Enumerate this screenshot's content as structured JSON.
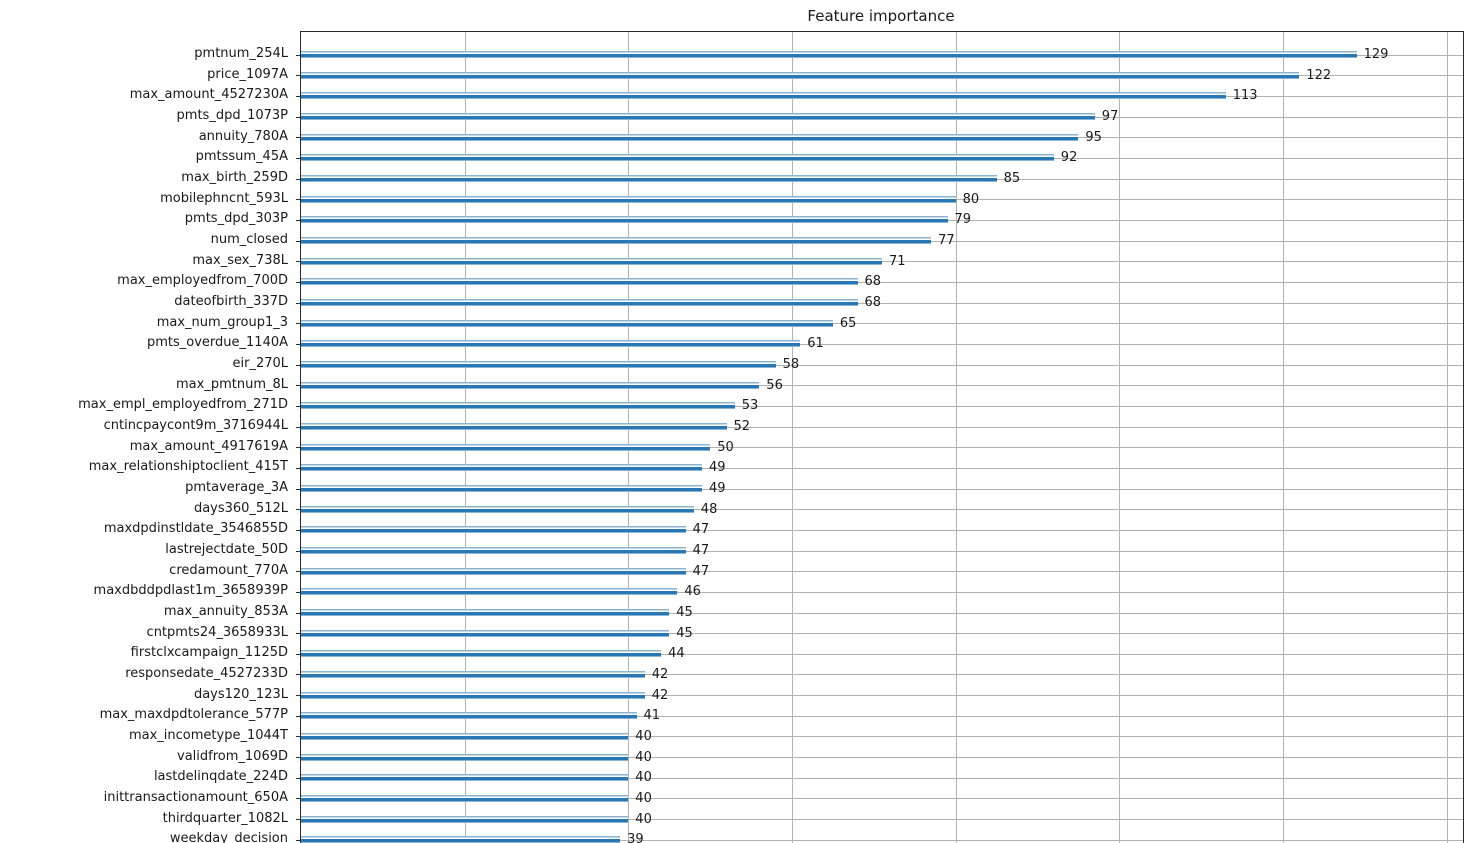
{
  "title": "Feature importance",
  "chart_data": {
    "type": "bar",
    "orientation": "horizontal",
    "title": "Feature importance",
    "xlabel": "",
    "ylabel": "",
    "xlim": [
      0,
      142
    ],
    "x_gridlines": [
      20,
      40,
      60,
      80,
      100,
      120,
      140
    ],
    "grid": true,
    "bar_color": "#2878b5",
    "gridline_color": "#b2b2b2",
    "value_labels_shown": true,
    "categories": [
      "pmtnum_254L",
      "price_1097A",
      "max_amount_4527230A",
      "pmts_dpd_1073P",
      "annuity_780A",
      "pmtssum_45A",
      "max_birth_259D",
      "mobilephncnt_593L",
      "pmts_dpd_303P",
      "num_closed",
      "max_sex_738L",
      "max_employedfrom_700D",
      "dateofbirth_337D",
      "max_num_group1_3",
      "pmts_overdue_1140A",
      "eir_270L",
      "max_pmtnum_8L",
      "max_empl_employedfrom_271D",
      "cntincpaycont9m_3716944L",
      "max_amount_4917619A",
      "max_relationshiptoclient_415T",
      "pmtaverage_3A",
      "days360_512L",
      "maxdpdinstldate_3546855D",
      "lastrejectdate_50D",
      "credamount_770A",
      "maxdbddpdlast1m_3658939P",
      "max_annuity_853A",
      "cntpmts24_3658933L",
      "firstclxcampaign_1125D",
      "responsedate_4527233D",
      "days120_123L",
      "max_maxdpdtolerance_577P",
      "max_incometype_1044T",
      "validfrom_1069D",
      "lastdelinqdate_224D",
      "inittransactionamount_650A",
      "thirdquarter_1082L",
      "weekday_decision"
    ],
    "values": [
      129,
      122,
      113,
      97,
      95,
      92,
      85,
      80,
      79,
      77,
      71,
      68,
      68,
      65,
      61,
      58,
      56,
      53,
      52,
      50,
      49,
      49,
      48,
      47,
      47,
      47,
      46,
      45,
      45,
      44,
      42,
      42,
      41,
      40,
      40,
      40,
      40,
      40,
      39
    ]
  }
}
